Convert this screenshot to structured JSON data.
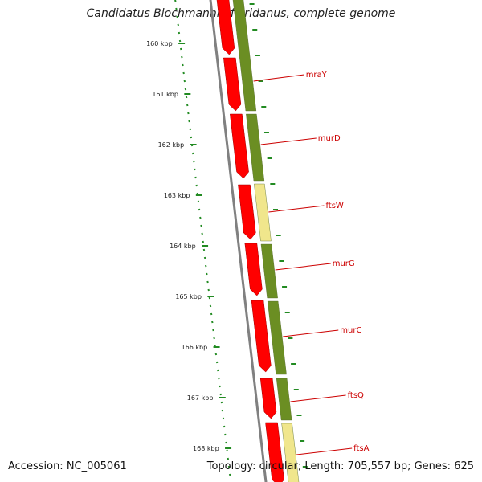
{
  "title": "Candidatus Blochmannia floridanus, complete genome",
  "footer": {
    "accession": "Accession: NC_005061",
    "topology": "Topology: circular; Length: 705,557 bp; Genes: 625"
  },
  "colors": {
    "forward_cds": "#ff0000",
    "reverse_cds_dark": "#6b8e23",
    "reverse_cds_light": "#f0e68c",
    "backbone": "#808080",
    "ticks": "#228b22",
    "label": "#cc0000"
  },
  "ticks": [
    "160 kbp",
    "161 kbp",
    "162 kbp",
    "163 kbp",
    "164 kbp",
    "165 kbp",
    "166 kbp",
    "167 kbp",
    "168 kbp"
  ],
  "genes": [
    {
      "name": "mraY",
      "shade": "dark"
    },
    {
      "name": "murD",
      "shade": "dark"
    },
    {
      "name": "ftsW",
      "shade": "light"
    },
    {
      "name": "murG",
      "shade": "dark"
    },
    {
      "name": "murC",
      "shade": "dark"
    },
    {
      "name": "ftsQ",
      "shade": "dark"
    },
    {
      "name": "ftsA",
      "shade": "light"
    }
  ]
}
